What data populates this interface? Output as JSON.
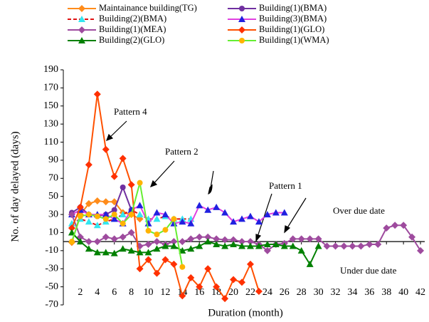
{
  "chart_data": {
    "type": "line",
    "ylabel": "No. of day delayed (days)",
    "xlabel": "Duration (month)",
    "annotations": [
      "Pattern 4",
      "Pattern 2",
      "Pattern 1",
      "Over due date",
      "Under due date"
    ],
    "x": [
      1,
      2,
      3,
      4,
      5,
      6,
      7,
      8,
      9,
      10,
      11,
      12,
      13,
      14,
      15,
      16,
      17,
      18,
      19,
      20,
      21,
      22,
      23,
      24,
      25,
      26,
      27,
      28,
      29,
      30,
      31,
      32,
      33,
      34,
      35,
      36,
      37,
      38,
      39,
      40,
      41,
      42
    ],
    "xlim": [
      0,
      42.5
    ],
    "xticks": [
      2,
      4,
      6,
      8,
      10,
      12,
      14,
      16,
      18,
      20,
      22,
      24,
      26,
      28,
      30,
      32,
      34,
      36,
      38,
      40,
      42
    ],
    "ylim": [
      -70,
      190
    ],
    "yticks": [
      190,
      170,
      150,
      130,
      110,
      90,
      70,
      50,
      30,
      10,
      -10,
      -30,
      -50,
      -70
    ],
    "series": [
      {
        "name": "Maintainance building(TG)",
        "color": "#ff8c1a",
        "marker": "diamond",
        "marker_color": "#ff8c1a",
        "values": [
          -1,
          30,
          42,
          45,
          44,
          44,
          32,
          30,
          25,
          null,
          null,
          null,
          null,
          null,
          null,
          null,
          null,
          null,
          null,
          null,
          null,
          null,
          null,
          null,
          null,
          null,
          null,
          null,
          null,
          null,
          null,
          null,
          null,
          null,
          null,
          null,
          null,
          null,
          null,
          null,
          null,
          null
        ]
      },
      {
        "name": "Building(1)(BMA)",
        "color": "#7030a0",
        "marker": "circle",
        "marker_color": "#7030a0",
        "values": [
          32,
          38,
          30,
          28,
          30,
          35,
          60,
          35,
          null,
          null,
          null,
          null,
          null,
          null,
          null,
          null,
          null,
          null,
          null,
          null,
          null,
          null,
          null,
          null,
          null,
          null,
          null,
          null,
          null,
          null,
          null,
          null,
          null,
          null,
          null,
          null,
          null,
          null,
          null,
          null,
          null,
          null
        ]
      },
      {
        "name": "Building(2)(BMA)",
        "color": "#e01010",
        "marker": "triangle",
        "marker_color": "#33e6f0",
        "dash": true,
        "values": [
          20,
          25,
          22,
          18,
          22,
          25,
          30,
          35,
          30,
          25,
          25,
          28,
          25,
          25,
          25,
          null,
          null,
          null,
          null,
          null,
          null,
          null,
          null,
          null,
          null,
          null,
          null,
          null,
          null,
          null,
          null,
          null,
          null,
          null,
          null,
          null,
          null,
          null,
          null,
          null,
          null,
          null
        ]
      },
      {
        "name": "Building(3)(BMA)",
        "color": "#e040e0",
        "marker": "triangle",
        "marker_color": "#2020e0",
        "values": [
          30,
          35,
          30,
          30,
          30,
          25,
          20,
          35,
          40,
          20,
          32,
          30,
          20,
          22,
          20,
          40,
          35,
          38,
          32,
          22,
          25,
          28,
          22,
          30,
          32,
          32,
          null,
          null,
          null,
          null,
          null,
          null,
          null,
          null,
          null,
          null,
          null,
          null,
          null,
          null,
          null,
          null
        ]
      },
      {
        "name": "Building(1)(MEA)",
        "color": "#9e4b9e",
        "marker": "diamond",
        "marker_color": "#9e4b9e",
        "values": [
          30,
          5,
          0,
          0,
          5,
          3,
          5,
          10,
          -5,
          -3,
          0,
          -3,
          0,
          0,
          3,
          5,
          5,
          3,
          2,
          2,
          0,
          0,
          -3,
          -10,
          -3,
          -2,
          3,
          3,
          3,
          3,
          -5,
          -5,
          -5,
          -5,
          -5,
          -3,
          -3,
          15,
          18,
          18,
          5,
          -10
        ]
      },
      {
        "name": "Building(1)(GLO)",
        "color": "#ff5000",
        "marker": "diamond",
        "marker_color": "#ff3000",
        "values": [
          15,
          38,
          85,
          163,
          102,
          72,
          92,
          63,
          -30,
          -20,
          -35,
          -20,
          -25,
          -60,
          -40,
          -50,
          -30,
          -50,
          -63,
          -42,
          -45,
          -25,
          -55,
          null,
          null,
          null,
          null,
          null,
          null,
          null,
          null,
          null,
          null,
          null,
          null,
          null,
          null,
          null,
          null,
          null,
          null,
          null
        ]
      },
      {
        "name": "Building(2)(GLO)",
        "color": "#008000",
        "marker": "triangle",
        "marker_color": "#008000",
        "values": [
          10,
          0,
          -8,
          -12,
          -12,
          -13,
          -8,
          -10,
          -12,
          -12,
          -8,
          -5,
          -5,
          -10,
          -8,
          -5,
          0,
          -3,
          -5,
          -3,
          -5,
          -5,
          -5,
          -3,
          -3,
          -5,
          -5,
          -10,
          -25,
          -5,
          null,
          null,
          null,
          null,
          null,
          null,
          null,
          null,
          null,
          null,
          null,
          null
        ]
      },
      {
        "name": "Building(1)(WMA)",
        "color": "#66ee33",
        "marker": "circle",
        "marker_color": "#ffb300",
        "values": [
          0,
          28,
          30,
          28,
          25,
          30,
          20,
          30,
          65,
          12,
          8,
          13,
          25,
          -28,
          null,
          null,
          null,
          null,
          null,
          null,
          null,
          null,
          null,
          null,
          null,
          null,
          null,
          null,
          null,
          null,
          null,
          null,
          null,
          null,
          null,
          null,
          null,
          null,
          null,
          null,
          null,
          null
        ]
      }
    ]
  }
}
